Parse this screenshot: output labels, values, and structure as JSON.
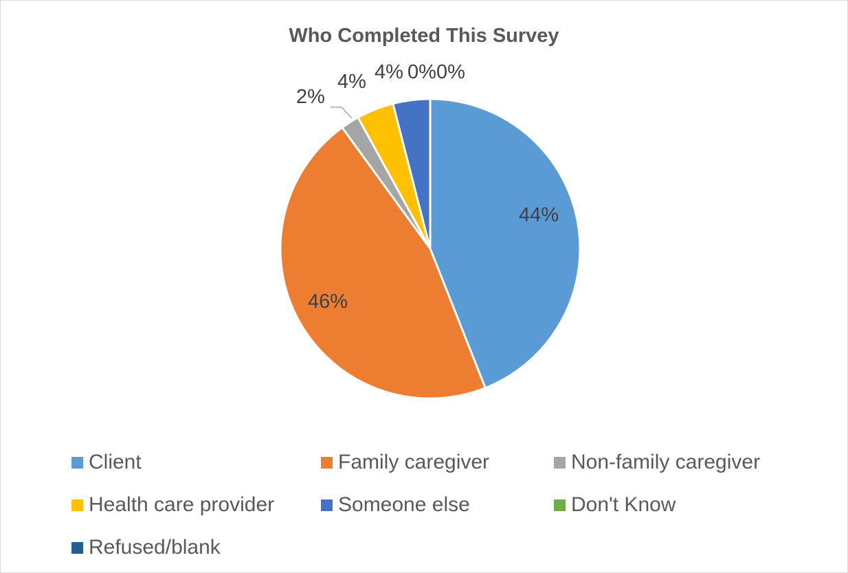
{
  "chart_data": {
    "type": "pie",
    "title": "Who Completed This Survey",
    "categories": [
      "Client",
      "Family caregiver",
      "Non-family caregiver",
      "Health care provider",
      "Someone else",
      "Don't Know",
      "Refused/blank"
    ],
    "values": [
      44,
      46,
      2,
      4,
      4,
      0,
      0
    ],
    "data_labels": [
      "44%",
      "46%",
      "2%",
      "4%",
      "4%",
      "0%",
      "0%"
    ],
    "colors": [
      "#5b9bd5",
      "#ed7d31",
      "#a5a5a5",
      "#ffc000",
      "#4472c4",
      "#70ad47",
      "#255e91"
    ],
    "legend_position": "bottom"
  }
}
